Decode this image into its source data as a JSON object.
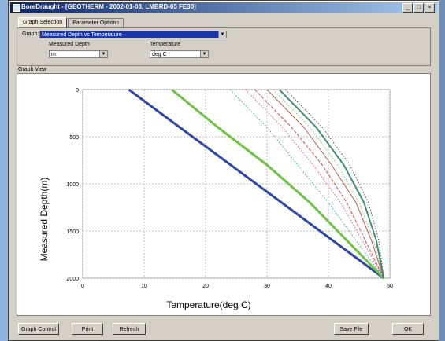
{
  "window": {
    "title": "BoreDraught - [GEOTHERM - 2002-01-03, LMBRD-05 FE30]",
    "minimize": "_",
    "maximize": "□",
    "close": "×"
  },
  "tabs": [
    "Graph Selection",
    "Parameter Options"
  ],
  "graph_selection": {
    "graph_label": "Graph:",
    "graph_value": "Measured Depth vs Temperature",
    "x_field_label": "Measured Depth",
    "x_field_value": "m",
    "y_field_label": "Temperature",
    "y_field_value": "deg C"
  },
  "graph_view_label": "Graph View",
  "buttons": {
    "graph_control": "Graph Control",
    "print": "Print",
    "refresh": "Refresh",
    "save_file": "Save File",
    "ok": "OK"
  },
  "chart_data": {
    "type": "line",
    "xlabel": "Temperature(deg C)",
    "ylabel": "Measured Depth(m)",
    "xlim": [
      0,
      50
    ],
    "ylim": [
      2000,
      0
    ],
    "x_ticks": [
      "0",
      "10",
      "20",
      "30",
      "40",
      "50"
    ],
    "y_ticks": [
      "0",
      "500",
      "1000",
      "1500",
      "2000"
    ],
    "grid": true,
    "series": [
      {
        "color": "#2f47a6",
        "style": "solid",
        "width": 3,
        "x": [
          7.5,
          49
        ],
        "y": [
          0,
          2000
        ]
      },
      {
        "color": "#6ec245",
        "style": "solid",
        "width": 3,
        "x": [
          14.5,
          22,
          30,
          37,
          43,
          49
        ],
        "y": [
          0,
          400,
          800,
          1200,
          1600,
          2000
        ]
      },
      {
        "color": "#3aa5a0",
        "style": "dotted",
        "width": 1,
        "x": [
          24,
          30,
          35,
          40,
          44.5,
          49
        ],
        "y": [
          0,
          400,
          800,
          1200,
          1600,
          2000
        ]
      },
      {
        "color": "#e05a80",
        "style": "dotted",
        "width": 1,
        "x": [
          26.5,
          32.5,
          37.5,
          42,
          45.5,
          49
        ],
        "y": [
          0,
          400,
          800,
          1200,
          1600,
          2000
        ]
      },
      {
        "color": "#e0494c",
        "style": "dashed",
        "width": 1,
        "x": [
          28,
          34,
          39,
          43,
          46,
          49
        ],
        "y": [
          0,
          400,
          800,
          1200,
          1600,
          2000
        ]
      },
      {
        "color": "#b06050",
        "style": "solid",
        "width": 1,
        "x": [
          30,
          36,
          40.5,
          44.5,
          47,
          49
        ],
        "y": [
          0,
          400,
          800,
          1200,
          1600,
          2000
        ]
      },
      {
        "color": "#8fbf70",
        "style": "dotted",
        "width": 1,
        "x": [
          31,
          37,
          41.5,
          45,
          47.3,
          49
        ],
        "y": [
          0,
          400,
          800,
          1200,
          1600,
          2000
        ]
      },
      {
        "color": "#3f8f7a",
        "style": "solid",
        "width": 2,
        "x": [
          32,
          38,
          42.5,
          45.8,
          47.8,
          49
        ],
        "y": [
          0,
          400,
          800,
          1200,
          1600,
          2000
        ]
      },
      {
        "color": "#4a4a4a",
        "style": "dotted",
        "width": 1,
        "x": [
          33,
          39,
          43.5,
          46.5,
          48.2,
          49
        ],
        "y": [
          0,
          400,
          800,
          1200,
          1600,
          2000
        ]
      }
    ]
  }
}
